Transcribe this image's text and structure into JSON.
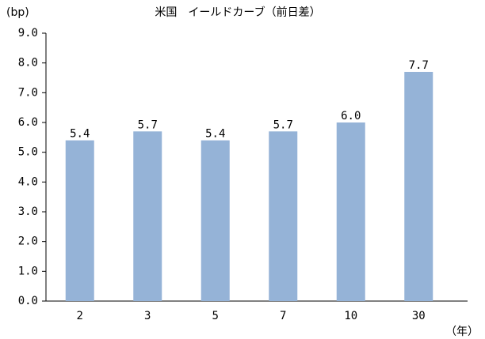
{
  "chart_data": {
    "type": "bar",
    "title": "米国　イールドカーブ（前日差）",
    "y_label": "(bp)",
    "x_label": "（年）",
    "categories": [
      "2",
      "3",
      "5",
      "7",
      "10",
      "30"
    ],
    "values": [
      5.4,
      5.7,
      5.4,
      5.7,
      6.0,
      7.7
    ],
    "value_labels": [
      "5.4",
      "5.7",
      "5.4",
      "5.7",
      "6.0",
      "7.7"
    ],
    "color": "#95b3d7",
    "ylim": [
      0,
      9
    ],
    "yticks": [
      {
        "value": 0,
        "label": "0.0"
      },
      {
        "value": 1,
        "label": "1.0"
      },
      {
        "value": 2,
        "label": "2.0"
      },
      {
        "value": 3,
        "label": "3.0"
      },
      {
        "value": 4,
        "label": "4.0"
      },
      {
        "value": 5,
        "label": "5.0"
      },
      {
        "value": 6,
        "label": "6.0"
      },
      {
        "value": 7,
        "label": "7.0"
      },
      {
        "value": 8,
        "label": "8.0"
      },
      {
        "value": 9,
        "label": "9.0"
      }
    ],
    "grid": false
  }
}
